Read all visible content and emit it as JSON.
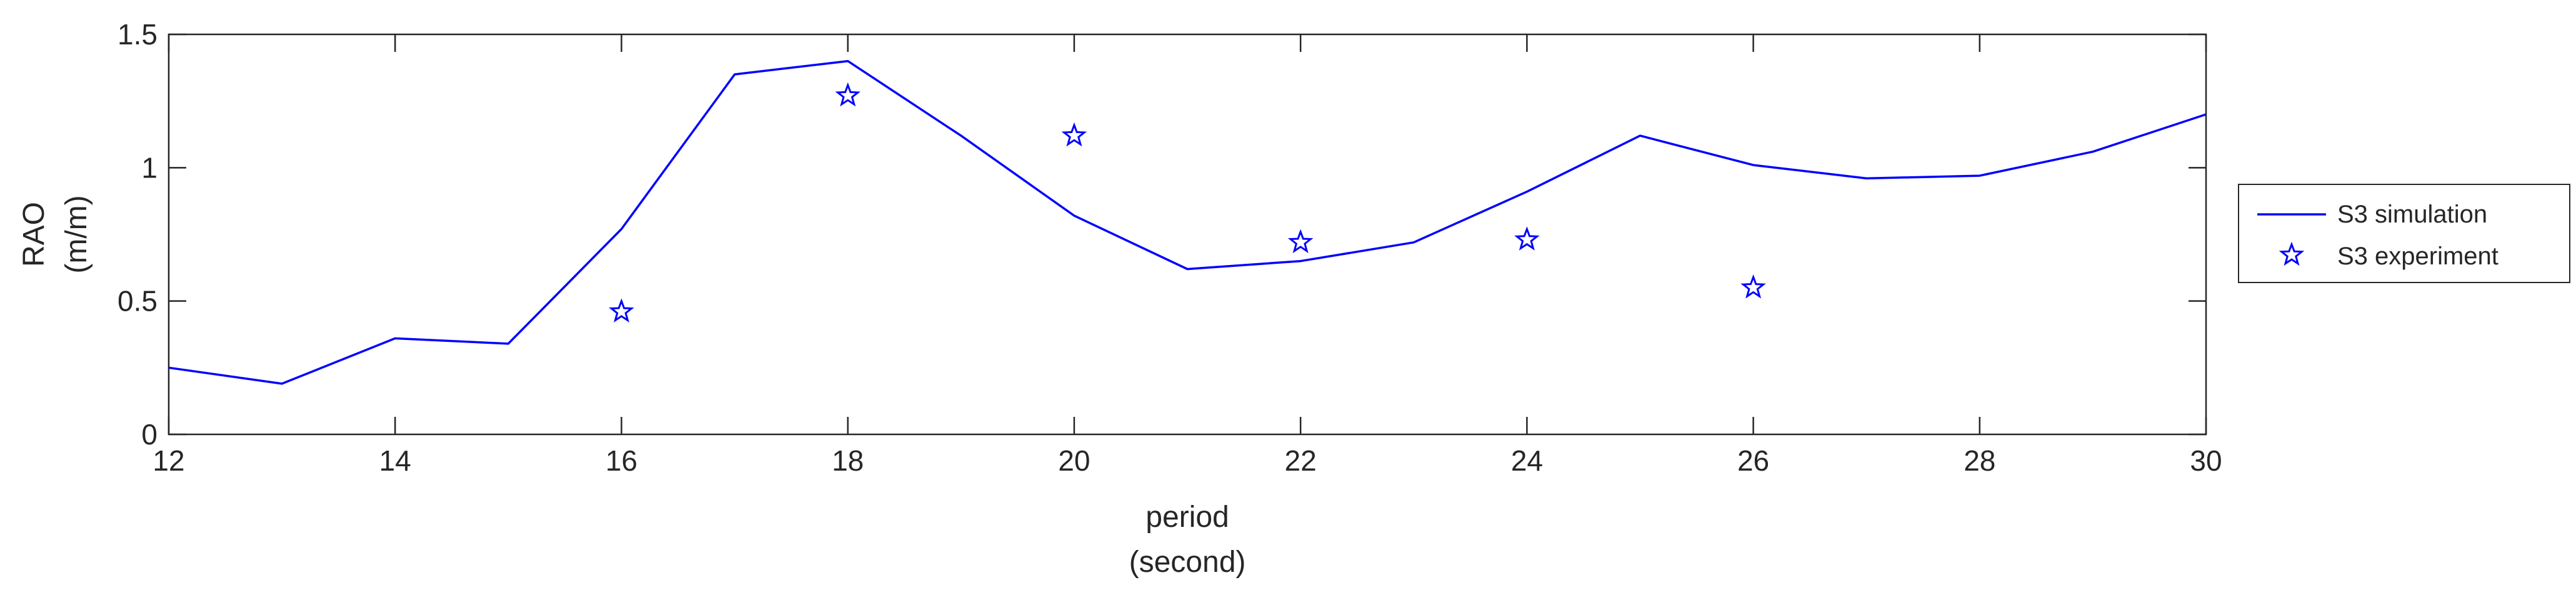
{
  "chart_data": {
    "type": "line",
    "title": "",
    "xlabel": [
      "period",
      "(second)"
    ],
    "ylabel": [
      "RAO",
      "(m/m)"
    ],
    "xlim": [
      12,
      30
    ],
    "ylim": [
      0,
      1.5
    ],
    "xticks": [
      12,
      14,
      16,
      18,
      20,
      22,
      24,
      26,
      28,
      30
    ],
    "yticks": [
      0,
      0.5,
      1,
      1.5
    ],
    "ytick_labels": [
      "0",
      "0.5",
      "1",
      "1.5"
    ],
    "grid": false,
    "legend_position": "outside-right",
    "series": [
      {
        "name": "S3 simulation",
        "style": "line",
        "color": "#0000ff",
        "x": [
          12,
          13,
          14,
          15,
          16,
          17,
          18,
          19,
          20,
          21,
          22,
          23,
          24,
          25,
          26,
          27,
          28,
          29,
          30
        ],
        "y": [
          0.25,
          0.19,
          0.36,
          0.34,
          0.77,
          1.35,
          1.4,
          1.12,
          0.82,
          0.62,
          0.65,
          0.72,
          0.91,
          1.12,
          1.01,
          0.96,
          0.97,
          1.06,
          1.2
        ]
      },
      {
        "name": "S3 experiment",
        "style": "marker",
        "marker": "star",
        "color": "#0000ff",
        "x": [
          16,
          18,
          20,
          22,
          24,
          26
        ],
        "y": [
          0.46,
          1.27,
          1.12,
          0.72,
          0.73,
          0.55
        ]
      }
    ]
  }
}
